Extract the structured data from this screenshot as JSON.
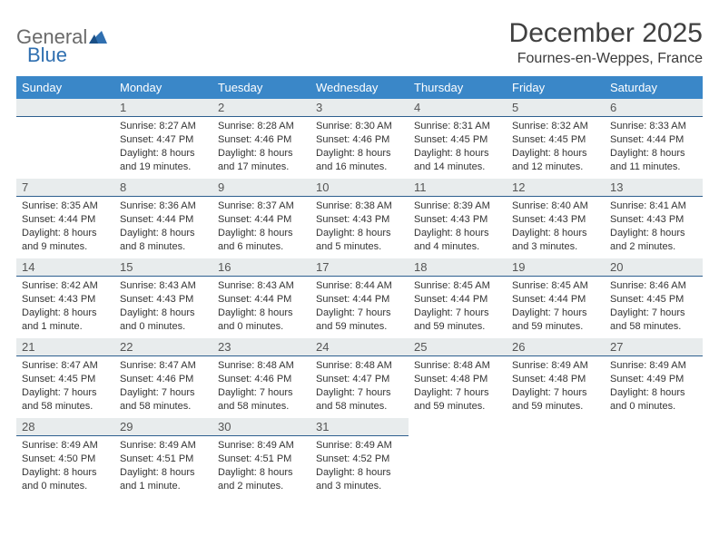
{
  "logo": {
    "text1": "General",
    "text2": "Blue"
  },
  "title": "December 2025",
  "location": "Fournes-en-Weppes, France",
  "colors": {
    "header_bg": "#3a87c8",
    "header_text": "#ffffff",
    "daynum_bg": "#e8eced",
    "daynum_border": "#2d5f8f",
    "text": "#333333",
    "logo_gray": "#6a6a6a",
    "logo_blue": "#2f6fb0"
  },
  "weekdays": [
    "Sunday",
    "Monday",
    "Tuesday",
    "Wednesday",
    "Thursday",
    "Friday",
    "Saturday"
  ],
  "layout": {
    "first_weekday_index": 1,
    "days_in_month": 31
  },
  "days": {
    "1": {
      "sunrise": "Sunrise: 8:27 AM",
      "sunset": "Sunset: 4:47 PM",
      "daylight": "Daylight: 8 hours and 19 minutes."
    },
    "2": {
      "sunrise": "Sunrise: 8:28 AM",
      "sunset": "Sunset: 4:46 PM",
      "daylight": "Daylight: 8 hours and 17 minutes."
    },
    "3": {
      "sunrise": "Sunrise: 8:30 AM",
      "sunset": "Sunset: 4:46 PM",
      "daylight": "Daylight: 8 hours and 16 minutes."
    },
    "4": {
      "sunrise": "Sunrise: 8:31 AM",
      "sunset": "Sunset: 4:45 PM",
      "daylight": "Daylight: 8 hours and 14 minutes."
    },
    "5": {
      "sunrise": "Sunrise: 8:32 AM",
      "sunset": "Sunset: 4:45 PM",
      "daylight": "Daylight: 8 hours and 12 minutes."
    },
    "6": {
      "sunrise": "Sunrise: 8:33 AM",
      "sunset": "Sunset: 4:44 PM",
      "daylight": "Daylight: 8 hours and 11 minutes."
    },
    "7": {
      "sunrise": "Sunrise: 8:35 AM",
      "sunset": "Sunset: 4:44 PM",
      "daylight": "Daylight: 8 hours and 9 minutes."
    },
    "8": {
      "sunrise": "Sunrise: 8:36 AM",
      "sunset": "Sunset: 4:44 PM",
      "daylight": "Daylight: 8 hours and 8 minutes."
    },
    "9": {
      "sunrise": "Sunrise: 8:37 AM",
      "sunset": "Sunset: 4:44 PM",
      "daylight": "Daylight: 8 hours and 6 minutes."
    },
    "10": {
      "sunrise": "Sunrise: 8:38 AM",
      "sunset": "Sunset: 4:43 PM",
      "daylight": "Daylight: 8 hours and 5 minutes."
    },
    "11": {
      "sunrise": "Sunrise: 8:39 AM",
      "sunset": "Sunset: 4:43 PM",
      "daylight": "Daylight: 8 hours and 4 minutes."
    },
    "12": {
      "sunrise": "Sunrise: 8:40 AM",
      "sunset": "Sunset: 4:43 PM",
      "daylight": "Daylight: 8 hours and 3 minutes."
    },
    "13": {
      "sunrise": "Sunrise: 8:41 AM",
      "sunset": "Sunset: 4:43 PM",
      "daylight": "Daylight: 8 hours and 2 minutes."
    },
    "14": {
      "sunrise": "Sunrise: 8:42 AM",
      "sunset": "Sunset: 4:43 PM",
      "daylight": "Daylight: 8 hours and 1 minute."
    },
    "15": {
      "sunrise": "Sunrise: 8:43 AM",
      "sunset": "Sunset: 4:43 PM",
      "daylight": "Daylight: 8 hours and 0 minutes."
    },
    "16": {
      "sunrise": "Sunrise: 8:43 AM",
      "sunset": "Sunset: 4:44 PM",
      "daylight": "Daylight: 8 hours and 0 minutes."
    },
    "17": {
      "sunrise": "Sunrise: 8:44 AM",
      "sunset": "Sunset: 4:44 PM",
      "daylight": "Daylight: 7 hours and 59 minutes."
    },
    "18": {
      "sunrise": "Sunrise: 8:45 AM",
      "sunset": "Sunset: 4:44 PM",
      "daylight": "Daylight: 7 hours and 59 minutes."
    },
    "19": {
      "sunrise": "Sunrise: 8:45 AM",
      "sunset": "Sunset: 4:44 PM",
      "daylight": "Daylight: 7 hours and 59 minutes."
    },
    "20": {
      "sunrise": "Sunrise: 8:46 AM",
      "sunset": "Sunset: 4:45 PM",
      "daylight": "Daylight: 7 hours and 58 minutes."
    },
    "21": {
      "sunrise": "Sunrise: 8:47 AM",
      "sunset": "Sunset: 4:45 PM",
      "daylight": "Daylight: 7 hours and 58 minutes."
    },
    "22": {
      "sunrise": "Sunrise: 8:47 AM",
      "sunset": "Sunset: 4:46 PM",
      "daylight": "Daylight: 7 hours and 58 minutes."
    },
    "23": {
      "sunrise": "Sunrise: 8:48 AM",
      "sunset": "Sunset: 4:46 PM",
      "daylight": "Daylight: 7 hours and 58 minutes."
    },
    "24": {
      "sunrise": "Sunrise: 8:48 AM",
      "sunset": "Sunset: 4:47 PM",
      "daylight": "Daylight: 7 hours and 58 minutes."
    },
    "25": {
      "sunrise": "Sunrise: 8:48 AM",
      "sunset": "Sunset: 4:48 PM",
      "daylight": "Daylight: 7 hours and 59 minutes."
    },
    "26": {
      "sunrise": "Sunrise: 8:49 AM",
      "sunset": "Sunset: 4:48 PM",
      "daylight": "Daylight: 7 hours and 59 minutes."
    },
    "27": {
      "sunrise": "Sunrise: 8:49 AM",
      "sunset": "Sunset: 4:49 PM",
      "daylight": "Daylight: 8 hours and 0 minutes."
    },
    "28": {
      "sunrise": "Sunrise: 8:49 AM",
      "sunset": "Sunset: 4:50 PM",
      "daylight": "Daylight: 8 hours and 0 minutes."
    },
    "29": {
      "sunrise": "Sunrise: 8:49 AM",
      "sunset": "Sunset: 4:51 PM",
      "daylight": "Daylight: 8 hours and 1 minute."
    },
    "30": {
      "sunrise": "Sunrise: 8:49 AM",
      "sunset": "Sunset: 4:51 PM",
      "daylight": "Daylight: 8 hours and 2 minutes."
    },
    "31": {
      "sunrise": "Sunrise: 8:49 AM",
      "sunset": "Sunset: 4:52 PM",
      "daylight": "Daylight: 8 hours and 3 minutes."
    }
  }
}
